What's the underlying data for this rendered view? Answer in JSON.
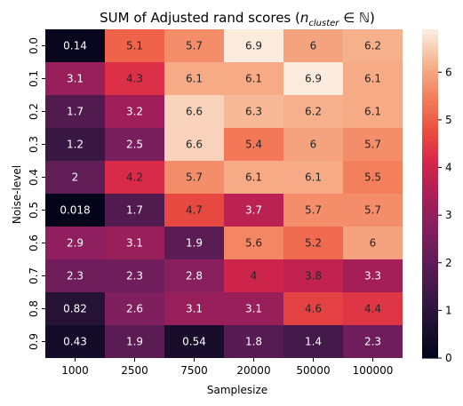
{
  "chart_data": {
    "type": "heatmap",
    "title": {
      "main": "SUM of Adjusted rand scores (",
      "var": "n",
      "sub": "cluster",
      "rest": " ∈ ℕ)"
    },
    "xlabel": "Samplesize",
    "ylabel": "Noise-level",
    "x_categories": [
      "1000",
      "2500",
      "7500",
      "20000",
      "50000",
      "100000"
    ],
    "y_categories": [
      "0.0",
      "0.1",
      "0.2",
      "0.3",
      "0.4",
      "0.5",
      "0.6",
      "0.7",
      "0.8",
      "0.9"
    ],
    "cells": [
      [
        "0.14",
        "5.1",
        "5.7",
        "6.9",
        "6",
        "6.2"
      ],
      [
        "3.1",
        "4.3",
        "6.1",
        "6.1",
        "6.9",
        "6.1"
      ],
      [
        "1.7",
        "3.2",
        "6.6",
        "6.3",
        "6.2",
        "6.1"
      ],
      [
        "1.2",
        "2.5",
        "6.6",
        "5.4",
        "6",
        "5.7"
      ],
      [
        "2",
        "4.2",
        "5.7",
        "6.1",
        "6.1",
        "5.5"
      ],
      [
        "0.018",
        "1.7",
        "4.7",
        "3.7",
        "5.7",
        "5.7"
      ],
      [
        "2.9",
        "3.1",
        "1.9",
        "5.6",
        "5.2",
        "6"
      ],
      [
        "2.3",
        "2.3",
        "2.8",
        "4",
        "3.8",
        "3.3"
      ],
      [
        "0.82",
        "2.6",
        "3.1",
        "3.1",
        "4.6",
        "4.4"
      ],
      [
        "0.43",
        "1.9",
        "0.54",
        "1.8",
        "1.4",
        "2.3"
      ]
    ],
    "colorbar": {
      "min": 0,
      "max": 6.9,
      "ticks": [
        "0",
        "1",
        "2",
        "3",
        "4",
        "5",
        "6"
      ],
      "colormap": "rocket"
    }
  }
}
